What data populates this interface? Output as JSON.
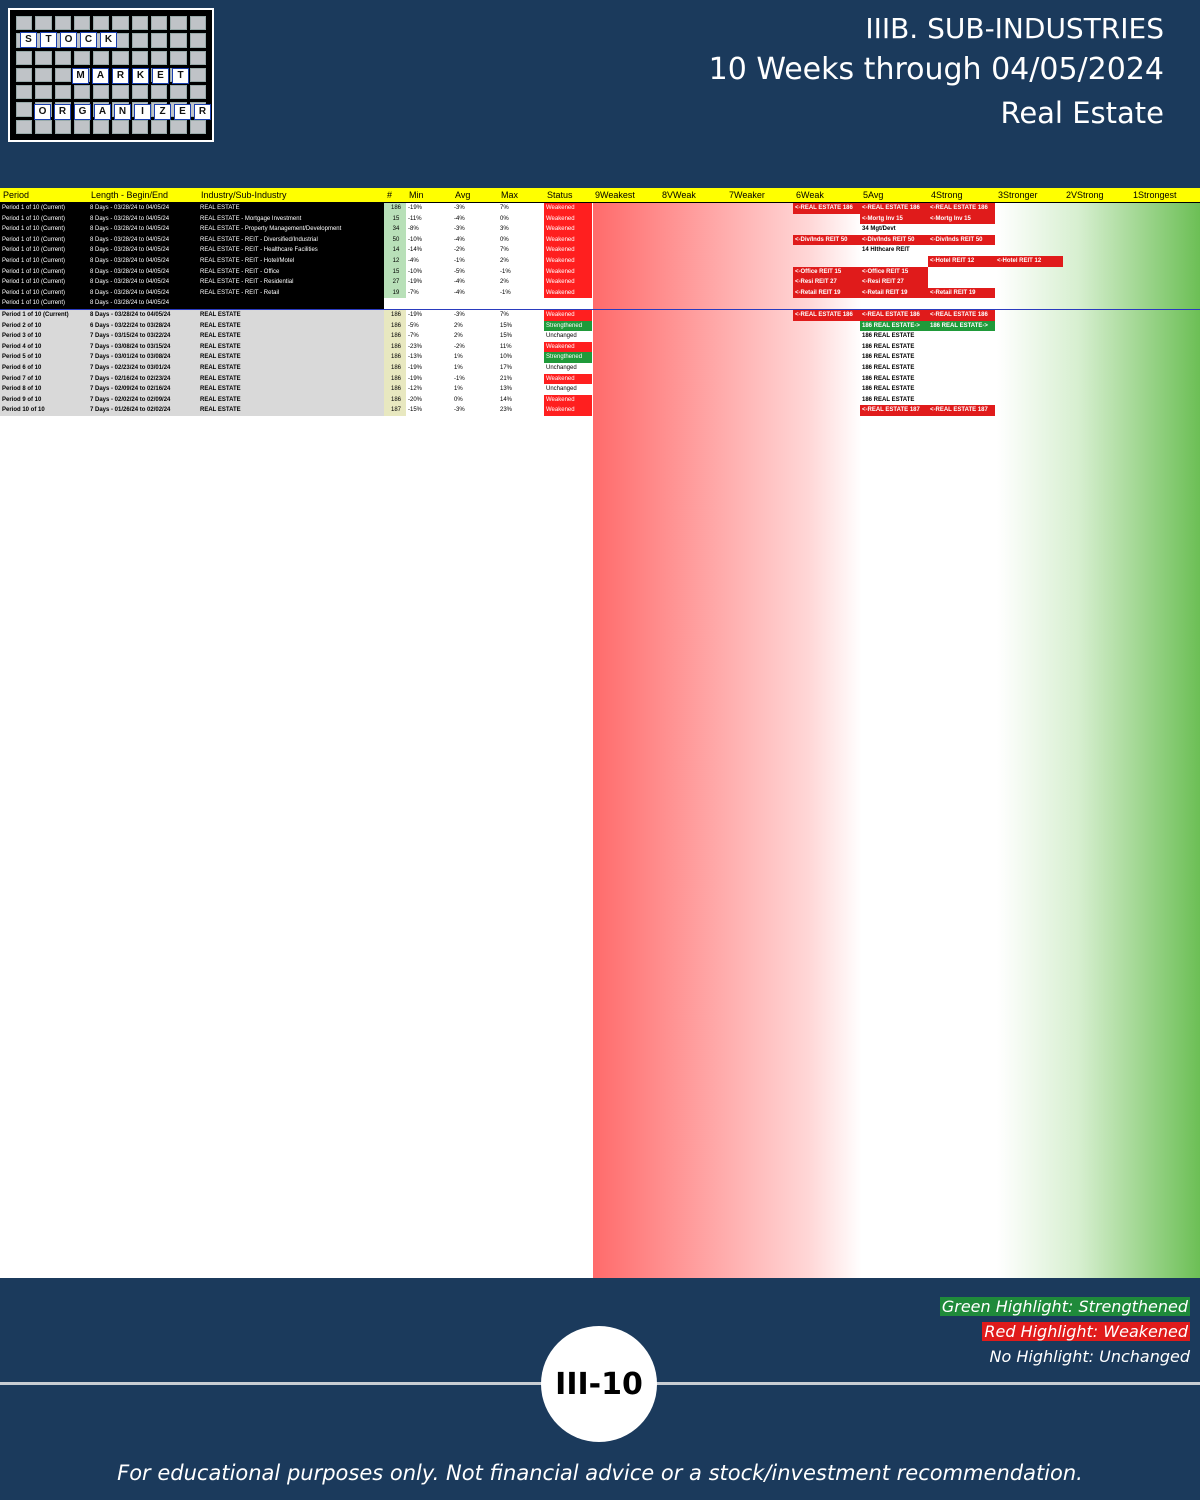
{
  "logo": {
    "words": [
      "STOCK",
      "MARKET",
      "ORGANIZER"
    ]
  },
  "header": {
    "title": "IIIB. SUB-INDUSTRIES",
    "subtitle": "10 Weeks through 04/05/2024",
    "sector": "Real Estate"
  },
  "columns": [
    "Period",
    "Length - Begin/End",
    "Industry/Sub-Industry",
    "#",
    "Min",
    "Avg",
    "Max",
    "Status",
    "9Weakest",
    "8VWeak",
    "7Weaker",
    "6Weak",
    "5Avg",
    "4Strong",
    "3Stronger",
    "2VStrong",
    "1Strongest"
  ],
  "rows": [
    {
      "p": "Period 1 of 10 (Current)",
      "l": "8 Days - 03/28/24 to 04/05/24",
      "i": "REAL ESTATE",
      "n": "186",
      "mn": "-19%",
      "av": "-3%",
      "mx": "7%",
      "s": "Weakened"
    },
    {
      "p": "Period 1 of 10 (Current)",
      "l": "8 Days - 03/28/24 to 04/05/24",
      "i": "REAL ESTATE - Mortgage Investment",
      "n": "15",
      "mn": "-11%",
      "av": "-4%",
      "mx": "0%",
      "s": "Weakened"
    },
    {
      "p": "Period 1 of 10 (Current)",
      "l": "8 Days - 03/28/24 to 04/05/24",
      "i": "REAL ESTATE - Property Management/Development",
      "n": "34",
      "mn": "-8%",
      "av": "-3%",
      "mx": "3%",
      "s": "Weakened"
    },
    {
      "p": "Period 1 of 10 (Current)",
      "l": "8 Days - 03/28/24 to 04/05/24",
      "i": "REAL ESTATE - REIT - Diversified/Industrial",
      "n": "50",
      "mn": "-10%",
      "av": "-4%",
      "mx": "0%",
      "s": "Weakened"
    },
    {
      "p": "Period 1 of 10 (Current)",
      "l": "8 Days - 03/28/24 to 04/05/24",
      "i": "REAL ESTATE - REIT - Healthcare Facilities",
      "n": "14",
      "mn": "-14%",
      "av": "-2%",
      "mx": "7%",
      "s": "Weakened"
    },
    {
      "p": "Period 1 of 10 (Current)",
      "l": "8 Days - 03/28/24 to 04/05/24",
      "i": "REAL ESTATE - REIT - Hotel/Motel",
      "n": "12",
      "mn": "-4%",
      "av": "-1%",
      "mx": "2%",
      "s": "Weakened"
    },
    {
      "p": "Period 1 of 10 (Current)",
      "l": "8 Days - 03/28/24 to 04/05/24",
      "i": "REAL ESTATE - REIT - Office",
      "n": "15",
      "mn": "-10%",
      "av": "-5%",
      "mx": "-1%",
      "s": "Weakened"
    },
    {
      "p": "Period 1 of 10 (Current)",
      "l": "8 Days - 03/28/24 to 04/05/24",
      "i": "REAL ESTATE - REIT - Residential",
      "n": "27",
      "mn": "-19%",
      "av": "-4%",
      "mx": "2%",
      "s": "Weakened"
    },
    {
      "p": "Period 1 of 10 (Current)",
      "l": "8 Days - 03/28/24 to 04/05/24",
      "i": "REAL ESTATE - REIT - Retail",
      "n": "19",
      "mn": "-7%",
      "av": "-4%",
      "mx": "-1%",
      "s": "Weakened"
    },
    {
      "p": "Period 1 of 10 (Current)",
      "l": "8 Days - 03/28/24 to 04/05/24",
      "i": "",
      "n": "",
      "mn": "",
      "av": "",
      "mx": "",
      "s": ""
    },
    {
      "p": "Period 1 of 10 (Current)",
      "l": "8 Days - 03/28/24 to 04/05/24",
      "i": "REAL ESTATE",
      "n": "186",
      "mn": "-19%",
      "av": "-3%",
      "mx": "7%",
      "s": "Weakened"
    },
    {
      "p": "Period 2 of 10",
      "l": "6 Days - 03/22/24 to 03/28/24",
      "i": "REAL ESTATE",
      "n": "186",
      "mn": "-5%",
      "av": "2%",
      "mx": "15%",
      "s": "Strengthened"
    },
    {
      "p": "Period 3 of 10",
      "l": "7 Days - 03/15/24 to 03/22/24",
      "i": "REAL ESTATE",
      "n": "186",
      "mn": "-7%",
      "av": "2%",
      "mx": "15%",
      "s": "Unchanged"
    },
    {
      "p": "Period 4 of 10",
      "l": "7 Days - 03/08/24 to 03/15/24",
      "i": "REAL ESTATE",
      "n": "186",
      "mn": "-23%",
      "av": "-2%",
      "mx": "11%",
      "s": "Weakened"
    },
    {
      "p": "Period 5 of 10",
      "l": "7 Days - 03/01/24 to 03/08/24",
      "i": "REAL ESTATE",
      "n": "186",
      "mn": "-13%",
      "av": "1%",
      "mx": "10%",
      "s": "Strengthened"
    },
    {
      "p": "Period 6 of 10",
      "l": "7 Days - 02/23/24 to 03/01/24",
      "i": "REAL ESTATE",
      "n": "186",
      "mn": "-19%",
      "av": "1%",
      "mx": "17%",
      "s": "Unchanged"
    },
    {
      "p": "Period 7 of 10",
      "l": "7 Days - 02/16/24 to 02/23/24",
      "i": "REAL ESTATE",
      "n": "186",
      "mn": "-19%",
      "av": "-1%",
      "mx": "21%",
      "s": "Weakened"
    },
    {
      "p": "Period 8 of 10",
      "l": "7 Days - 02/09/24 to 02/16/24",
      "i": "REAL ESTATE",
      "n": "186",
      "mn": "-12%",
      "av": "1%",
      "mx": "13%",
      "s": "Unchanged"
    },
    {
      "p": "Period 9 of 10",
      "l": "7 Days - 02/02/24 to 02/09/24",
      "i": "REAL ESTATE",
      "n": "186",
      "mn": "-20%",
      "av": "0%",
      "mx": "14%",
      "s": "Weakened"
    },
    {
      "p": "Period 10 of 10",
      "l": "7 Days - 01/26/24 to 02/02/24",
      "i": "REAL ESTATE",
      "n": "187",
      "mn": "-15%",
      "av": "-3%",
      "mx": "23%",
      "s": "Weakened"
    }
  ],
  "bucket_labels": [
    {
      "row": 0,
      "col": "6Weak",
      "text": "<-REAL ESTATE 186",
      "c": "r"
    },
    {
      "row": 0,
      "col": "5Avg",
      "text": "<-REAL ESTATE 186",
      "c": "r"
    },
    {
      "row": 0,
      "col": "4Strong",
      "text": "<-REAL ESTATE 186",
      "c": "r"
    },
    {
      "row": 1,
      "col": "5Avg",
      "text": "<-Mortg Inv 15",
      "c": "r"
    },
    {
      "row": 1,
      "col": "4Strong",
      "text": "<-Mortg Inv 15",
      "c": "r"
    },
    {
      "row": 2,
      "col": "5Avg",
      "text": "34 Mgt/Devt",
      "c": "n"
    },
    {
      "row": 3,
      "col": "6Weak",
      "text": "<-Div/Inds REIT 50",
      "c": "r"
    },
    {
      "row": 3,
      "col": "5Avg",
      "text": "<-Div/Inds REIT 50",
      "c": "r"
    },
    {
      "row": 3,
      "col": "4Strong",
      "text": "<-Div/Inds REIT 50",
      "c": "r"
    },
    {
      "row": 4,
      "col": "5Avg",
      "text": "14 Hlthcare REIT",
      "c": "n"
    },
    {
      "row": 5,
      "col": "4Strong",
      "text": "<-Hotel REIT 12",
      "c": "r"
    },
    {
      "row": 5,
      "col": "3Stronger",
      "text": "<-Hotel REIT 12",
      "c": "r"
    },
    {
      "row": 6,
      "col": "6Weak",
      "text": "<-Office REIT 15",
      "c": "r"
    },
    {
      "row": 6,
      "col": "5Avg",
      "text": "<-Office REIT 15",
      "c": "r"
    },
    {
      "row": 7,
      "col": "6Weak",
      "text": "<-Resi REIT 27",
      "c": "r"
    },
    {
      "row": 7,
      "col": "5Avg",
      "text": "<-Resi REIT 27",
      "c": "r"
    },
    {
      "row": 8,
      "col": "6Weak",
      "text": "<-Retail REIT 19",
      "c": "r"
    },
    {
      "row": 8,
      "col": "5Avg",
      "text": "<-Retail REIT 19",
      "c": "r"
    },
    {
      "row": 8,
      "col": "4Strong",
      "text": "<-Retail REIT 19",
      "c": "r"
    },
    {
      "row": 10,
      "col": "6Weak",
      "text": "<-REAL ESTATE 186",
      "c": "r"
    },
    {
      "row": 10,
      "col": "5Avg",
      "text": "<-REAL ESTATE 186",
      "c": "r"
    },
    {
      "row": 10,
      "col": "4Strong",
      "text": "<-REAL ESTATE 186",
      "c": "r"
    },
    {
      "row": 11,
      "col": "5Avg",
      "text": "186 REAL ESTATE->",
      "c": "g"
    },
    {
      "row": 11,
      "col": "4Strong",
      "text": "186 REAL ESTATE->",
      "c": "g"
    },
    {
      "row": 12,
      "col": "5Avg",
      "text": "186 REAL ESTATE",
      "c": "n"
    },
    {
      "row": 13,
      "col": "5Avg",
      "text": "186 REAL ESTATE",
      "c": "n"
    },
    {
      "row": 14,
      "col": "5Avg",
      "text": "186 REAL ESTATE",
      "c": "n"
    },
    {
      "row": 15,
      "col": "5Avg",
      "text": "186 REAL ESTATE",
      "c": "n"
    },
    {
      "row": 16,
      "col": "5Avg",
      "text": "186 REAL ESTATE",
      "c": "n"
    },
    {
      "row": 17,
      "col": "5Avg",
      "text": "186 REAL ESTATE",
      "c": "n"
    },
    {
      "row": 18,
      "col": "5Avg",
      "text": "186 REAL ESTATE",
      "c": "n"
    },
    {
      "row": 19,
      "col": "5Avg",
      "text": "<-REAL ESTATE 187",
      "c": "r"
    },
    {
      "row": 19,
      "col": "4Strong",
      "text": "<-REAL ESTATE 187",
      "c": "r"
    }
  ],
  "legend": {
    "green": "Green Highlight: Strengthened",
    "red": "Red Highlight: Weakened",
    "none": "No Highlight: Unchanged"
  },
  "page_number": "III-10",
  "disclaimer": "For educational purposes only. Not financial advice or a stock/investment recommendation.",
  "colors": {
    "background": "#1b3a5c",
    "header_row": "#ffff00",
    "weakened": "#ff1f1f",
    "strengthened": "#1f9a3a"
  }
}
